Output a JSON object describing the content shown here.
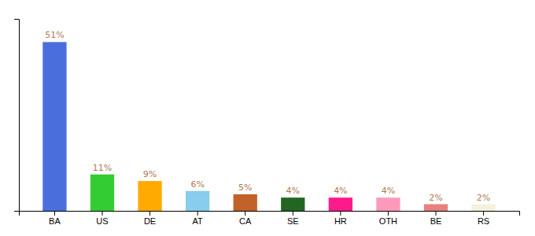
{
  "chart_data": {
    "type": "bar",
    "categories": [
      "BA",
      "US",
      "DE",
      "AT",
      "CA",
      "SE",
      "HR",
      "OTH",
      "BE",
      "RS"
    ],
    "values": [
      51,
      11,
      9,
      6,
      5,
      4,
      4,
      4,
      2,
      2
    ],
    "value_labels": [
      "51%",
      "11%",
      "9%",
      "6%",
      "5%",
      "4%",
      "4%",
      "4%",
      "2%",
      "2%"
    ],
    "colors": [
      "#4a6fdc",
      "#33cc33",
      "#ffaa00",
      "#88ccee",
      "#c0622a",
      "#226622",
      "#ff1a8c",
      "#ff99bb",
      "#e88080",
      "#f5f0dc"
    ],
    "ylim": [
      0,
      58
    ],
    "data_labels": true,
    "tick_labels": "x",
    "grid": false
  }
}
